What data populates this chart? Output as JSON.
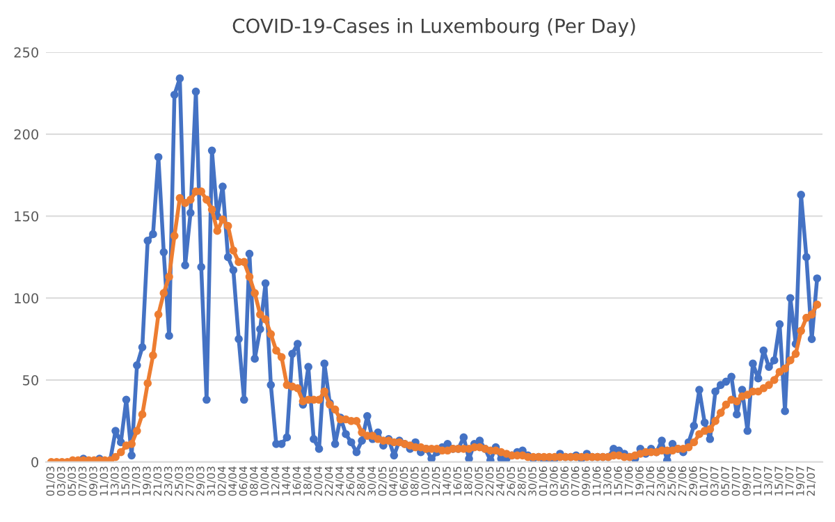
{
  "chart_data": {
    "type": "line",
    "title": "COVID-19-Cases in Luxembourg (Per Day)",
    "categories": [
      "01/03",
      null,
      "03/03",
      null,
      "05/03",
      null,
      "07/03",
      null,
      "09/03",
      null,
      "11/03",
      null,
      "13/03",
      null,
      "15/03",
      null,
      "17/03",
      null,
      "19/03",
      null,
      "21/03",
      null,
      "23/03",
      null,
      "25/03",
      null,
      "27/03",
      null,
      "29/03",
      null,
      "31/03",
      null,
      "02/04",
      null,
      "04/04",
      null,
      "06/04",
      null,
      "08/04",
      null,
      "10/04",
      null,
      "12/04",
      null,
      "14/04",
      null,
      "16/04",
      null,
      "18/04",
      null,
      "20/04",
      null,
      "22/04",
      null,
      "24/04",
      null,
      "26/04",
      null,
      "28/04",
      null,
      "30/04",
      null,
      "02/05",
      null,
      "04/05",
      null,
      "06/05",
      null,
      "08/05",
      null,
      "10/05",
      null,
      "12/05",
      null,
      "14/05",
      null,
      "16/05",
      null,
      "18/05",
      null,
      "20/05",
      null,
      "22/05",
      null,
      "24/05",
      null,
      "26/05",
      null,
      "28/05",
      null,
      "30/05",
      null,
      "01/06",
      null,
      "03/06",
      null,
      "05/06",
      null,
      "07/06",
      null,
      "09/06",
      null,
      "11/06",
      null,
      "13/06",
      null,
      "15/06",
      null,
      "17/06",
      null,
      "19/06",
      null,
      "21/06",
      null,
      "23/06",
      null,
      "25/06",
      null,
      "27/06",
      null,
      "29/06",
      null,
      "01/07",
      null,
      "03/07",
      null,
      "05/07",
      null,
      "07/07",
      null,
      "09/07",
      null,
      "11/07",
      null,
      "13/07",
      null,
      "15/07",
      null,
      "17/07",
      null,
      "19/07",
      null,
      "21/07",
      null
    ],
    "series": [
      {
        "color": "#4472c4",
        "values": [
          null,
          null,
          null,
          null,
          0,
          0,
          2,
          0,
          0,
          2,
          0,
          1,
          19,
          12,
          38,
          4,
          59,
          70,
          135,
          139,
          186,
          128,
          77,
          224,
          234,
          120,
          152,
          226,
          119,
          38,
          190,
          150,
          168,
          125,
          117,
          75,
          38,
          127,
          63,
          81,
          109,
          47,
          11,
          11,
          15,
          66,
          72,
          35,
          58,
          14,
          8,
          60,
          36,
          11,
          27,
          17,
          12,
          6,
          13,
          28,
          14,
          18,
          10,
          14,
          4,
          13,
          11,
          8,
          12,
          6,
          8,
          2,
          6,
          9,
          11,
          8,
          8,
          15,
          2,
          11,
          13,
          8,
          1,
          9,
          2,
          2,
          4,
          6,
          7,
          4,
          2,
          3,
          1,
          1,
          2,
          5,
          3,
          3,
          4,
          2,
          5,
          3,
          3,
          3,
          3,
          8,
          7,
          5,
          3,
          2,
          8,
          5,
          8,
          6,
          13,
          1,
          11,
          8,
          6,
          12,
          22,
          44,
          24,
          14,
          43,
          47,
          49,
          52,
          29,
          44,
          19,
          60,
          51,
          68,
          58,
          62,
          84,
          31,
          100,
          72,
          163,
          125,
          75,
          112
        ]
      },
      {
        "color": "#ed7d31",
        "values": [
          0,
          0,
          0,
          0,
          1,
          1,
          1,
          1,
          1,
          1,
          1,
          1,
          3,
          6,
          10,
          11,
          19,
          29,
          48,
          65,
          90,
          103,
          113,
          138,
          161,
          158,
          160,
          165,
          165,
          160,
          154,
          141,
          148,
          144,
          129,
          122,
          122,
          113,
          103,
          90,
          87,
          78,
          68,
          64,
          47,
          46,
          45,
          37,
          38,
          38,
          38,
          43,
          35,
          32,
          26,
          26,
          25,
          25,
          18,
          16,
          16,
          14,
          13,
          13,
          12,
          12,
          11,
          10,
          9,
          9,
          8,
          8,
          8,
          7,
          7,
          8,
          8,
          8,
          8,
          9,
          9,
          8,
          7,
          7,
          6,
          5,
          4,
          4,
          4,
          3,
          3,
          3,
          3,
          3,
          3,
          3,
          3,
          3,
          3,
          3,
          3,
          3,
          3,
          3,
          3,
          4,
          4,
          3,
          3,
          4,
          5,
          6,
          6,
          6,
          7,
          7,
          7,
          8,
          8,
          9,
          12,
          17,
          19,
          20,
          25,
          30,
          35,
          38,
          37,
          40,
          41,
          43,
          43,
          45,
          47,
          50,
          55,
          57,
          62,
          66,
          80,
          88,
          90,
          96
        ]
      }
    ],
    "ylim": [
      0,
      250
    ],
    "yticks": [
      0,
      50,
      100,
      150,
      200,
      250
    ],
    "grid": "y",
    "marker": "circle",
    "line_style": "solid"
  }
}
